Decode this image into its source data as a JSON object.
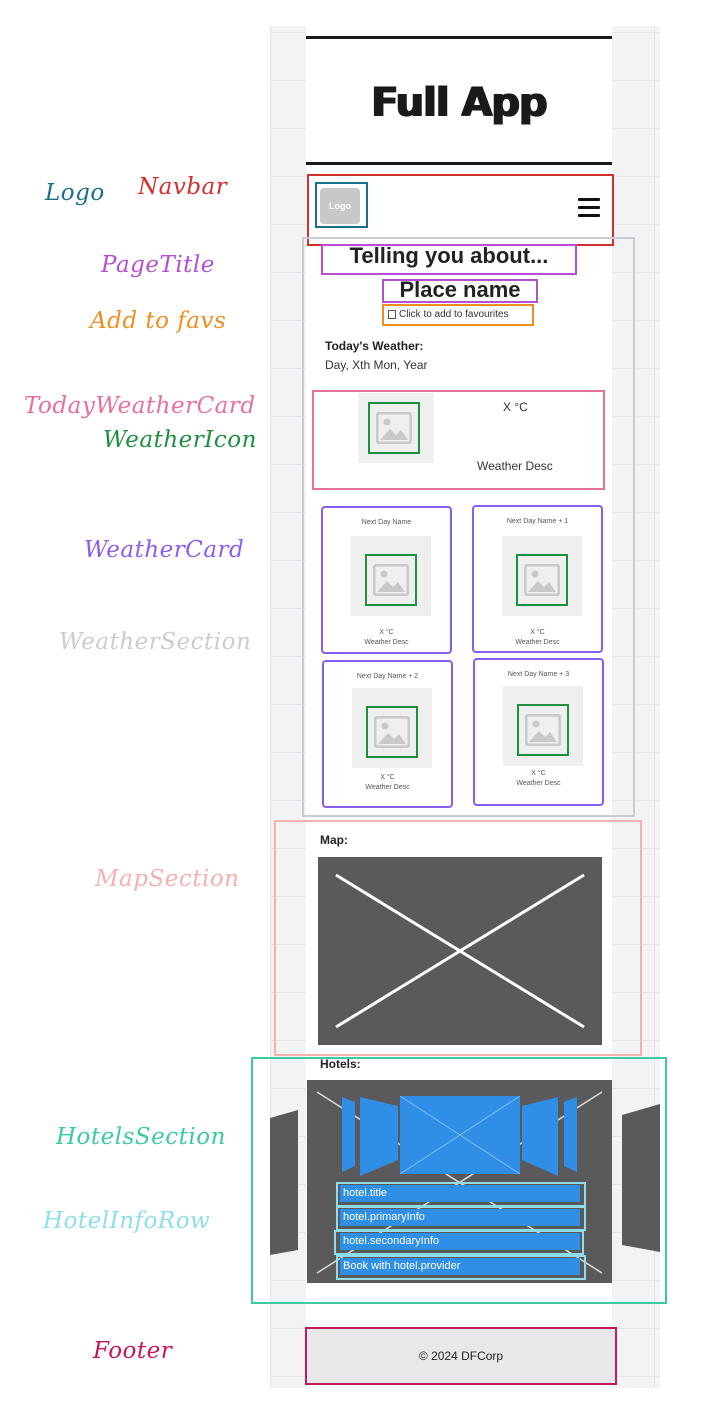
{
  "app": {
    "title": "Full App"
  },
  "annotations": {
    "logo": "Logo",
    "navbar": "Navbar",
    "page_title": "PageTitle",
    "add_to_favs": "Add to favs",
    "today_weather_card": "TodayWeatherCard",
    "weather_icon": "WeatherIcon",
    "weather_card": "WeatherCard",
    "weather_section": "WeatherSection",
    "map_section": "MapSection",
    "hotels_section": "HotelsSection",
    "hotel_info_row": "HotelInfoRow",
    "footer": "Footer"
  },
  "annotation_colors": {
    "logo": "#1b6e8c",
    "navbar": "#d32f2f",
    "page_title": "#b44fd6",
    "add_to_favs": "#ef8f1f",
    "today_weather_card": "#e8709b",
    "weather_icon": "#1e8f3e",
    "weather_card": "#8b5cf0",
    "weather_section": "#c9ccd3",
    "map_section": "#f5b1ad",
    "hotels_section": "#3ccaa0",
    "hotel_info_row": "#8fdcec",
    "footer": "#c2185b"
  },
  "navbar": {
    "logo_text": "Logo",
    "menu_icon": "hamburger-icon"
  },
  "page": {
    "heading": "Telling you about...",
    "place_name": "Place name",
    "favourite_link": "Click to add to favourites"
  },
  "today": {
    "heading": "Today's Weather:",
    "date": "Day, Xth Mon, Year",
    "temp": "X °C",
    "desc": "Weather Desc"
  },
  "forecast": [
    {
      "day": "Next Day Name",
      "temp": "X °C",
      "desc": "Weather Desc"
    },
    {
      "day": "Next Day Name + 1",
      "temp": "X °C",
      "desc": "Weather Desc"
    },
    {
      "day": "Next Day Name + 2",
      "temp": "X °C",
      "desc": "Weather Desc"
    },
    {
      "day": "Next Day Name + 3",
      "temp": "X °C",
      "desc": "Weather Desc"
    }
  ],
  "map": {
    "heading": "Map:"
  },
  "hotels": {
    "heading": "Hotels:",
    "rows": [
      "hotel.title",
      "hotel.primaryInfo",
      "hotel.secondaryInfo",
      "Book with hotel.provider"
    ]
  },
  "footer": {
    "text": "©  2024 DFCorp"
  }
}
